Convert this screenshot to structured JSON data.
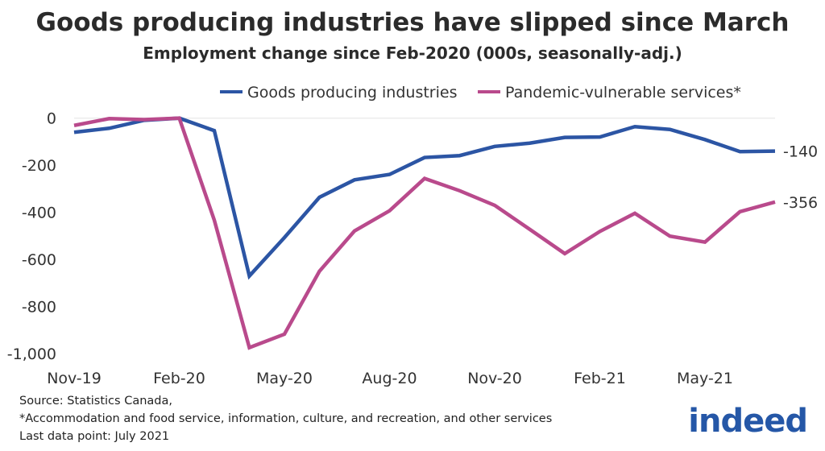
{
  "chart_data": {
    "type": "line",
    "title": "Goods producing industries have slipped since March",
    "subtitle": "Employment change since Feb-2020 (000s, seasonally-adj.)",
    "x": [
      "Nov-19",
      "Dec-19",
      "Jan-20",
      "Feb-20",
      "Mar-20",
      "Apr-20",
      "May-20",
      "Jun-20",
      "Jul-20",
      "Aug-20",
      "Sep-20",
      "Oct-20",
      "Nov-20",
      "Dec-20",
      "Jan-21",
      "Feb-21",
      "Mar-21",
      "Apr-21",
      "May-21",
      "Jun-21",
      "Jul-21"
    ],
    "x_tick_labels": [
      "Nov-19",
      "Feb-20",
      "May-20",
      "Aug-20",
      "Nov-20",
      "Feb-21",
      "May-21"
    ],
    "y_tick_labels": [
      "0",
      "-200",
      "-400",
      "-600",
      "-800",
      "-1,000"
    ],
    "y_ticks": [
      0,
      -200,
      -400,
      -600,
      -800,
      -1000
    ],
    "ylim": [
      -1000,
      0
    ],
    "grid": false,
    "legend_position": "top",
    "series": [
      {
        "name": "Goods producing industries",
        "color": "#2c55a4",
        "end_label": "-140",
        "values": [
          -60,
          -43,
          -9,
          0,
          -53,
          -670,
          -507,
          -336,
          -262,
          -239,
          -167,
          -159,
          -120,
          -106,
          -82,
          -80,
          -36,
          -48,
          -91,
          -142,
          -140
        ]
      },
      {
        "name": "Pandemic-vulnerable services*",
        "color": "#b94a8c",
        "end_label": "-356",
        "values": [
          -31,
          -2,
          -6,
          0,
          -433,
          -974,
          -917,
          -650,
          -479,
          -393,
          -256,
          -308,
          -370,
          -472,
          -575,
          -481,
          -404,
          -501,
          -526,
          -397,
          -356
        ]
      }
    ]
  },
  "footer": {
    "source": "Source: Statistics Canada,",
    "note": "*Accommodation and food service, information, culture, and recreation, and other services",
    "last_point": "Last data point: July 2021"
  },
  "logo": "indeed"
}
